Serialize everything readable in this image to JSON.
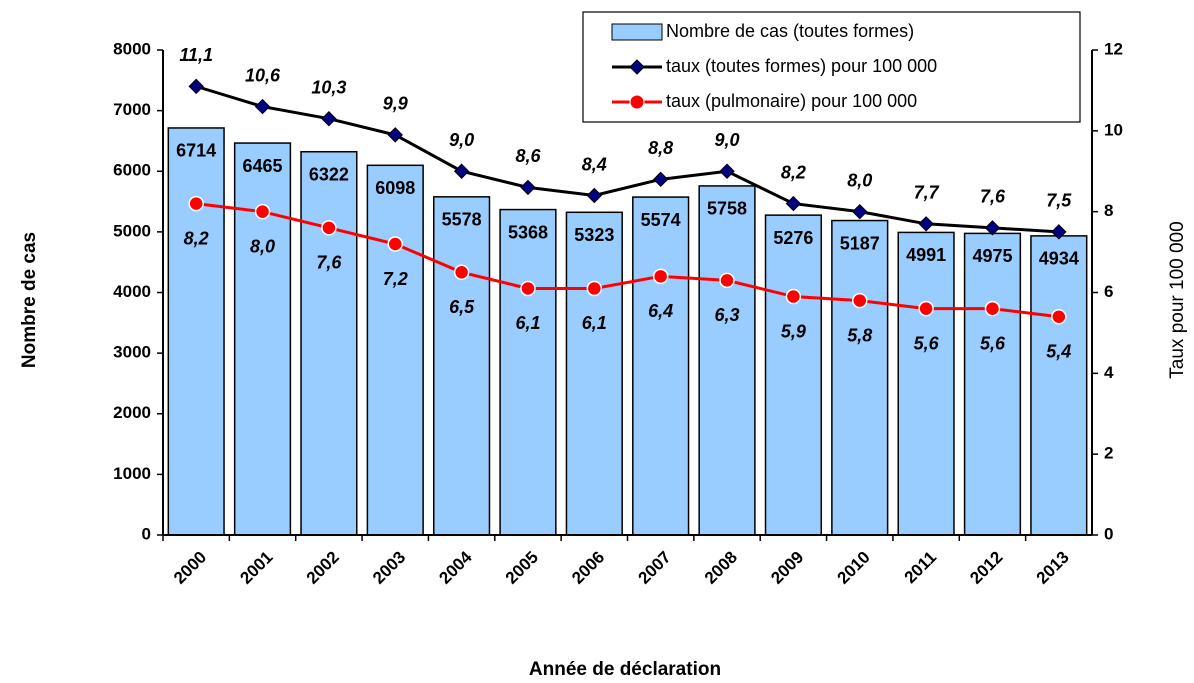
{
  "chart_data": {
    "type": "bar",
    "x_label": "Année de déclaration",
    "y_label": "Nombre de cas",
    "y2_label": "Taux pour 100 000",
    "categories": [
      "2000",
      "2001",
      "2002",
      "2003",
      "2004",
      "2005",
      "2006",
      "2007",
      "2008",
      "2009",
      "2010",
      "2011",
      "2012",
      "2013"
    ],
    "series": [
      {
        "name": "Nombre de cas (toutes formes)",
        "type": "bar",
        "color": "#99ccff",
        "values": [
          6714,
          6465,
          6322,
          6098,
          5578,
          5368,
          5323,
          5574,
          5758,
          5276,
          5187,
          4991,
          4975,
          4934
        ]
      },
      {
        "name": "taux (toutes formes) pour 100 000",
        "type": "line",
        "axis": "y2",
        "color": "#000000",
        "marker": "diamond",
        "values": [
          11.1,
          10.6,
          10.3,
          9.9,
          9.0,
          8.6,
          8.4,
          8.8,
          9.0,
          8.2,
          8.0,
          7.7,
          7.6,
          7.5
        ],
        "value_labels": [
          "11,1",
          "10,6",
          "10,3",
          "9,9",
          "9,0",
          "8,6",
          "8,4",
          "8,8",
          "9,0",
          "8,2",
          "8,0",
          "7,7",
          "7,6",
          "7,5"
        ]
      },
      {
        "name": "taux (pulmonaire) pour 100 000",
        "type": "line",
        "axis": "y2",
        "color": "#ff0000",
        "marker": "circle",
        "values": [
          8.2,
          8.0,
          7.6,
          7.2,
          6.5,
          6.1,
          6.1,
          6.4,
          6.3,
          5.9,
          5.8,
          5.6,
          5.6,
          5.4
        ],
        "value_labels": [
          "8,2",
          "8,0",
          "7,6",
          "7,2",
          "6,5",
          "6,1",
          "6,1",
          "6,4",
          "6,3",
          "5,9",
          "5,8",
          "5,6",
          "5,6",
          "5,4"
        ]
      }
    ],
    "ylim": [
      0,
      8000
    ],
    "yticks": [
      0,
      1000,
      2000,
      3000,
      4000,
      5000,
      6000,
      7000,
      8000
    ],
    "y2lim": [
      0,
      12
    ],
    "y2ticks": [
      0,
      2,
      4,
      6,
      8,
      10,
      12
    ],
    "legend": "top-right"
  }
}
